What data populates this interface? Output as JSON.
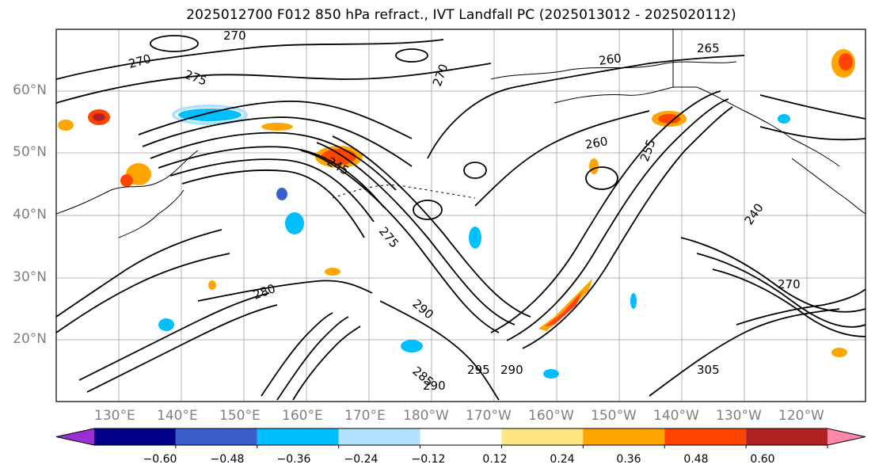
{
  "title": "2025012700 F012 850 hPa refract., IVT Landfall PC (2025013012 - 2025020112)",
  "lat_labels": [
    "60°N",
    "50°N",
    "40°N",
    "30°N",
    "20°N"
  ],
  "lon_labels": [
    "130°E",
    "140°E",
    "150°E",
    "160°E",
    "170°E",
    "180°W",
    "170°W",
    "160°W",
    "150°W",
    "140°W",
    "130°W",
    "120°W"
  ],
  "contour_labels": [
    "270",
    "270",
    "275",
    "270",
    "260",
    "265",
    "260",
    "255",
    "245",
    "275",
    "290",
    "280",
    "295",
    "290",
    "285",
    "290",
    "305",
    "240",
    "270"
  ],
  "colorbar": {
    "ticks": [
      "−0.60",
      "−0.48",
      "−0.36",
      "−0.24",
      "−0.12",
      "0.12",
      "0.24",
      "0.36",
      "0.48",
      "0.60"
    ],
    "colors": [
      "#9b30d0",
      "#00008b",
      "#3a5fcd",
      "#00bfff",
      "#b0e2ff",
      "#ffffff",
      "#ffe680",
      "#ffa500",
      "#ff4500",
      "#b22222",
      "#ff88aa"
    ]
  }
}
